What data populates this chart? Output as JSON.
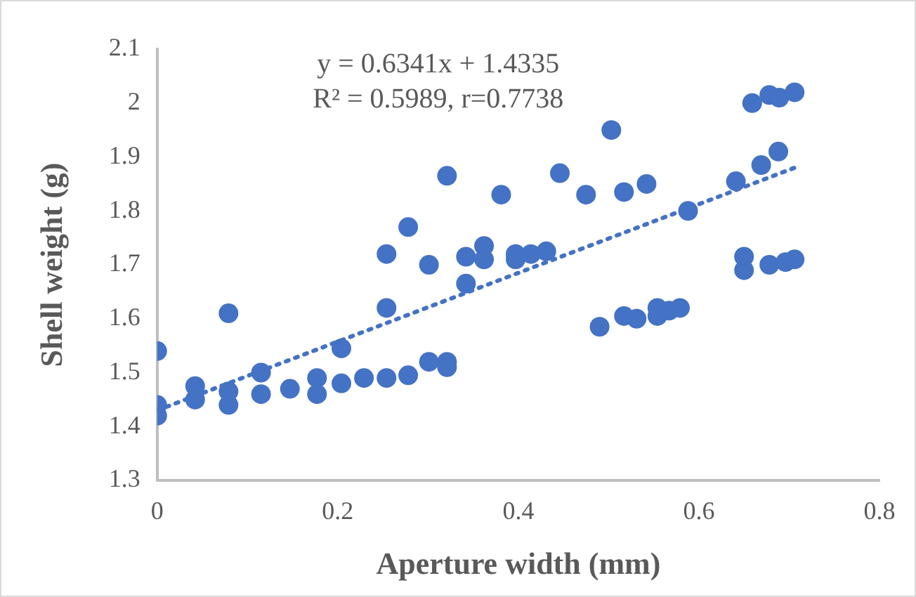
{
  "chart_data": {
    "type": "scatter",
    "xlabel": "Aperture width (mm)",
    "ylabel": "Shell weight (g)",
    "annotations": [
      "y = 0.6341x + 1.4335",
      "R² = 0.5989, r=0.7738"
    ],
    "xlim": [
      0,
      0.8
    ],
    "xticks": [
      0,
      0.2,
      0.4,
      0.6,
      0.8
    ],
    "ylim": [
      1.3,
      2.1
    ],
    "yticks": [
      1.3,
      1.4,
      1.5,
      1.6,
      1.7,
      1.8,
      1.9,
      2,
      2.1
    ],
    "grid": false,
    "legend": false,
    "marker": "circle",
    "series": [
      {
        "color": "#4472c4",
        "x": [
          0,
          0,
          0,
          0.042,
          0.042,
          0.079,
          0.079,
          0.079,
          0.115,
          0.115,
          0.147,
          0.177,
          0.177,
          0.204,
          0.204,
          0.229,
          0.254,
          0.254,
          0.254,
          0.278,
          0.278,
          0.301,
          0.301,
          0.321,
          0.321,
          0.321,
          0.342,
          0.342,
          0.362,
          0.362,
          0.381,
          0.397,
          0.397,
          0.414,
          0.431,
          0.446,
          0.475,
          0.49,
          0.503,
          0.517,
          0.517,
          0.531,
          0.542,
          0.554,
          0.554,
          0.567,
          0.579,
          0.588,
          0.641,
          0.65,
          0.65,
          0.659,
          0.669,
          0.678,
          0.678,
          0.688,
          0.689,
          0.696,
          0.706,
          0.706
        ],
        "values": [
          1.54,
          1.44,
          1.42,
          1.475,
          1.45,
          1.61,
          1.465,
          1.44,
          1.5,
          1.46,
          1.47,
          1.49,
          1.46,
          1.545,
          1.48,
          1.49,
          1.49,
          1.62,
          1.72,
          1.495,
          1.77,
          1.7,
          1.52,
          1.865,
          1.52,
          1.51,
          1.715,
          1.665,
          1.735,
          1.71,
          1.83,
          1.72,
          1.71,
          1.72,
          1.725,
          1.87,
          1.83,
          1.585,
          1.95,
          1.835,
          1.605,
          1.6,
          1.85,
          1.62,
          1.605,
          1.615,
          1.62,
          1.8,
          1.855,
          1.715,
          1.69,
          2.0,
          1.885,
          1.7,
          2.015,
          1.91,
          2.01,
          1.705,
          2.02,
          1.71
        ]
      },
      {
        "type": "line",
        "color": "#4472c4",
        "marker": "none",
        "line_style": "dotted",
        "x": [
          0,
          0.706
        ],
        "values": [
          1.43,
          1.88
        ]
      }
    ]
  }
}
